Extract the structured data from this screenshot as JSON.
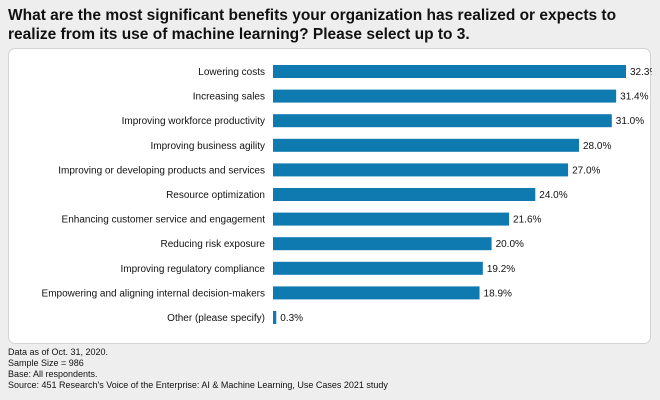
{
  "title": "What are the most significant benefits your organization has realized or expects to realize from its use of machine learning? Please select up to 3.",
  "chart_data": {
    "type": "bar",
    "orientation": "horizontal",
    "categories": [
      "Lowering costs",
      "Increasing sales",
      "Improving workforce productivity",
      "Improving business agility",
      "Improving or developing products and services",
      "Resource optimization",
      "Enhancing customer service and engagement",
      "Reducing risk exposure",
      "Improving regulatory compliance",
      "Empowering and aligning internal decision-makers",
      "Other (please specify)"
    ],
    "values": [
      32.3,
      31.4,
      31.0,
      28.0,
      27.0,
      24.0,
      21.6,
      20.0,
      19.2,
      18.9,
      0.3
    ],
    "value_labels": [
      "32.3%",
      "31.4%",
      "31.0%",
      "28.0%",
      "27.0%",
      "24.0%",
      "21.6%",
      "20.0%",
      "19.2%",
      "18.9%",
      "0.3%"
    ],
    "xlim": [
      0,
      32.3
    ],
    "bar_color": "#0f7ab0",
    "grid": false,
    "legend": "none"
  },
  "footer": {
    "line1": "Data as of Oct. 31, 2020.",
    "line2": "Sample Size = 986",
    "line3": "Base: All respondents.",
    "line4": "Source: 451 Research's Voice of the Enterprise: AI & Machine Learning, Use Cases 2021 study"
  }
}
